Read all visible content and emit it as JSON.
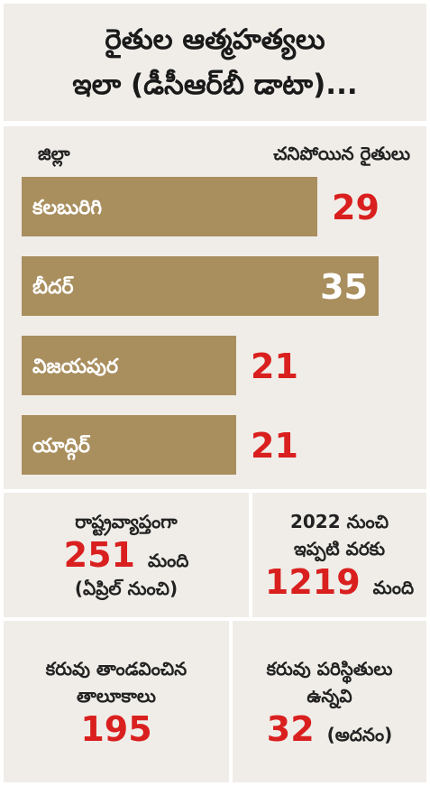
{
  "title": {
    "line1": "రైతుల ఆత్మహత్యలు",
    "line2": "ఇలా (డీసీఆర్‌బీ డాటా)..."
  },
  "chart_data": {
    "type": "bar",
    "orientation": "horizontal",
    "xlabel": "జిల్లా",
    "ylabel": "చనిపోయిన రైతులు",
    "categories": [
      "కలబురిగి",
      "బీదర్",
      "విజయపుర",
      "యాద్గిర్"
    ],
    "values": [
      29,
      35,
      21,
      21
    ],
    "xlim": [
      0,
      35
    ],
    "bar_color": "#a98e5e",
    "label_color": "#d9201f",
    "grid": false
  },
  "stats": {
    "national": {
      "label": "రాష్ట్రవ్యాప్తంగా",
      "value": "251",
      "unit": "మంది",
      "note": "(ఏప్రిల్ నుంచి)"
    },
    "since2022": {
      "label1": "2022 నుంచి",
      "label2": "ఇప్పటి వరకు",
      "value": "1219",
      "unit": "మంది"
    },
    "drought_taluks": {
      "label1": "కరువు తాండవించిన",
      "label2": "తాలూకాలు",
      "value": "195"
    },
    "drought_conditions": {
      "label1": "కరువు పరిస్థితులు",
      "label2": "ఉన్నవి",
      "value": "32",
      "unit": "(అదనం)"
    }
  },
  "colors": {
    "panel": "#f0ede8",
    "accent": "#d9201f",
    "bar": "#a98e5e"
  }
}
